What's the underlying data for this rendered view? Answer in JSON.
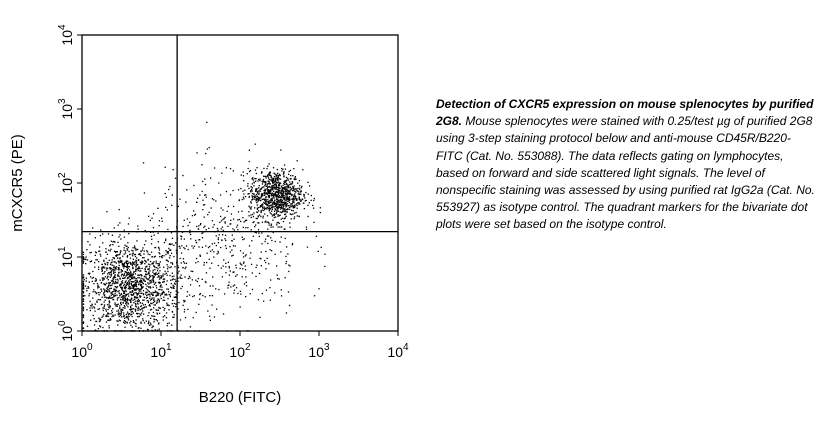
{
  "chart_data": {
    "type": "scatter",
    "xlabel": "B220 (FITC)",
    "ylabel": "mCXCR5 (PE)",
    "x_scale": "log",
    "y_scale": "log",
    "xlim": [
      1,
      10000
    ],
    "ylim": [
      1,
      10000
    ],
    "x_ticks": [
      {
        "value": 1,
        "base": "10",
        "exp": "0"
      },
      {
        "value": 10,
        "base": "10",
        "exp": "1"
      },
      {
        "value": 100,
        "base": "10",
        "exp": "2"
      },
      {
        "value": 1000,
        "base": "10",
        "exp": "3"
      },
      {
        "value": 10000,
        "base": "10",
        "exp": "4"
      }
    ],
    "y_ticks": [
      {
        "value": 1,
        "base": "10",
        "exp": "0"
      },
      {
        "value": 10,
        "base": "10",
        "exp": "1"
      },
      {
        "value": 100,
        "base": "10",
        "exp": "2"
      },
      {
        "value": 1000,
        "base": "10",
        "exp": "3"
      },
      {
        "value": 10000,
        "base": "10",
        "exp": "4"
      }
    ],
    "quadrant_markers": {
      "x": 16,
      "y": 22
    },
    "grid": false,
    "legend": "none",
    "populations": [
      {
        "x_center": 4,
        "y_center": 4,
        "count": 1500,
        "spread_log": 0.32
      },
      {
        "x_center": 280,
        "y_center": 70,
        "count": 900,
        "spread_log": 0.17
      },
      {
        "x_center": 60,
        "y_center": 15,
        "count": 500,
        "spread_log": 0.5
      }
    ],
    "colors": {
      "points": "#000000",
      "frame": "#000000"
    }
  },
  "caption": {
    "title": "Detection of CXCR5 expression on mouse splenocytes by purified 2G8.",
    "body": " Mouse splenocytes were stained with 0.25/test µg of purified 2G8 using 3-step staining protocol below and anti-mouse CD45R/B220-FITC (Cat. No. 553088). The data reflects gating on lymphocytes, based on forward and side scattered light signals. The level of nonspecific staining was assessed by using purified rat IgG2a (Cat. No. 553927) as isotype control. The quadrant markers for the bivariate dot plots were set based on the isotype control."
  }
}
